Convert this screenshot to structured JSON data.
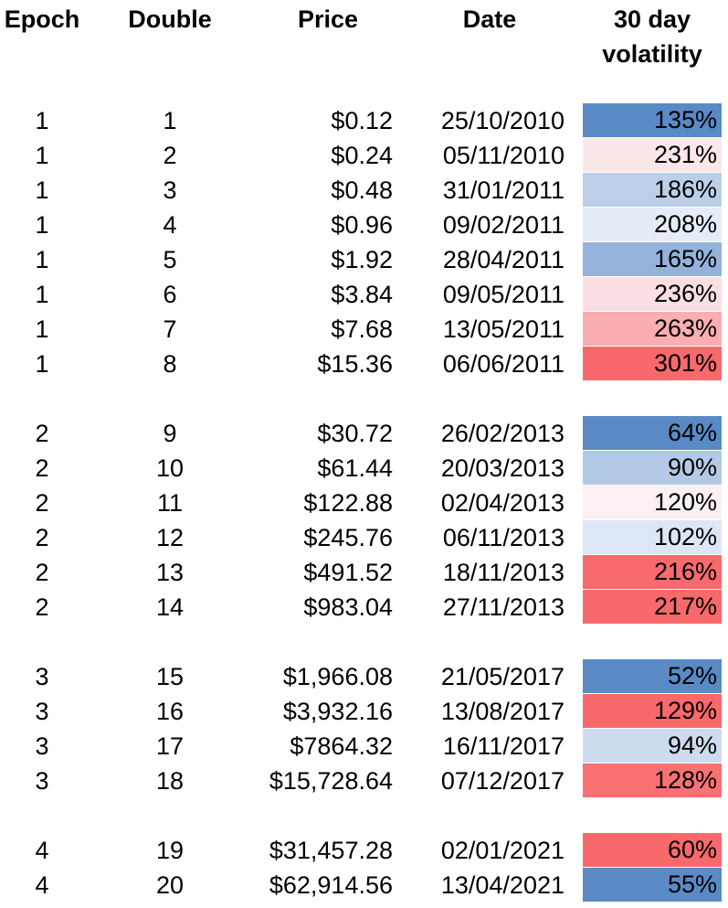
{
  "chart_data": {
    "type": "table",
    "title": "",
    "columns": [
      "Epoch",
      "Double",
      "Price",
      "Date",
      "30 day volatility"
    ],
    "header": {
      "epoch": "Epoch",
      "double": "Double",
      "price": "Price",
      "date": "Date",
      "volatility_line1": "30 day",
      "volatility_line2": "volatility"
    },
    "layout": {
      "group_breaks_after_rows": [
        8,
        14,
        18
      ],
      "heatmap_column": "30 day volatility",
      "color_scale": {
        "min": "#5A8AC6",
        "mid": "#FCFCFF",
        "max": "#F8696B"
      }
    },
    "rows": [
      {
        "epoch": "1",
        "double": "1",
        "price": "$0.12",
        "date": "25/10/2010",
        "volatility": "135%",
        "cell_color": "#5A8AC6"
      },
      {
        "epoch": "1",
        "double": "2",
        "price": "$0.24",
        "date": "05/11/2010",
        "volatility": "231%",
        "cell_color": "#FBE7EA"
      },
      {
        "epoch": "1",
        "double": "3",
        "price": "$0.48",
        "date": "31/01/2011",
        "volatility": "186%",
        "cell_color": "#BCCFE8"
      },
      {
        "epoch": "1",
        "double": "4",
        "price": "$0.96",
        "date": "09/02/2011",
        "volatility": "208%",
        "cell_color": "#E6ECF7"
      },
      {
        "epoch": "1",
        "double": "5",
        "price": "$1.92",
        "date": "28/04/2011",
        "volatility": "165%",
        "cell_color": "#94B3DA"
      },
      {
        "epoch": "1",
        "double": "6",
        "price": "$3.84",
        "date": "09/05/2011",
        "volatility": "236%",
        "cell_color": "#FBDEE1"
      },
      {
        "epoch": "1",
        "double": "7",
        "price": "$7.68",
        "date": "13/05/2011",
        "volatility": "263%",
        "cell_color": "#FAAEB0"
      },
      {
        "epoch": "1",
        "double": "8",
        "price": "$15.36",
        "date": "06/06/2011",
        "volatility": "301%",
        "cell_color": "#F8696B"
      },
      {
        "epoch": "2",
        "double": "9",
        "price": "$30.72",
        "date": "26/02/2013",
        "volatility": "64%",
        "cell_color": "#5A8AC6"
      },
      {
        "epoch": "2",
        "double": "10",
        "price": "$61.44",
        "date": "20/03/2013",
        "volatility": "90%",
        "cell_color": "#B4C9E6"
      },
      {
        "epoch": "2",
        "double": "11",
        "price": "$122.88",
        "date": "02/04/2013",
        "volatility": "120%",
        "cell_color": "#FCF0F2"
      },
      {
        "epoch": "2",
        "double": "12",
        "price": "$245.76",
        "date": "06/11/2013",
        "volatility": "102%",
        "cell_color": "#DDE6F4"
      },
      {
        "epoch": "2",
        "double": "13",
        "price": "$491.52",
        "date": "18/11/2013",
        "volatility": "216%",
        "cell_color": "#F86A6C"
      },
      {
        "epoch": "2",
        "double": "14",
        "price": "$983.04",
        "date": "27/11/2013",
        "volatility": "217%",
        "cell_color": "#F8696B"
      },
      {
        "epoch": "3",
        "double": "15",
        "price": "$1,966.08",
        "date": "21/05/2017",
        "volatility": "52%",
        "cell_color": "#5A8AC6"
      },
      {
        "epoch": "3",
        "double": "16",
        "price": "$3,932.16",
        "date": "13/08/2017",
        "volatility": "129%",
        "cell_color": "#F8696B"
      },
      {
        "epoch": "3",
        "double": "17",
        "price": "$7864.32",
        "date": "16/11/2017",
        "volatility": "94%",
        "cell_color": "#CDDBEF"
      },
      {
        "epoch": "3",
        "double": "18",
        "price": "$15,728.64",
        "date": "07/12/2017",
        "volatility": "128%",
        "cell_color": "#F87173"
      },
      {
        "epoch": "4",
        "double": "19",
        "price": "$31,457.28",
        "date": "02/01/2021",
        "volatility": "60%",
        "cell_color": "#F8696B"
      },
      {
        "epoch": "4",
        "double": "20",
        "price": "$62,914.56",
        "date": "13/04/2021",
        "volatility": "55%",
        "cell_color": "#5A8AC6"
      }
    ]
  }
}
